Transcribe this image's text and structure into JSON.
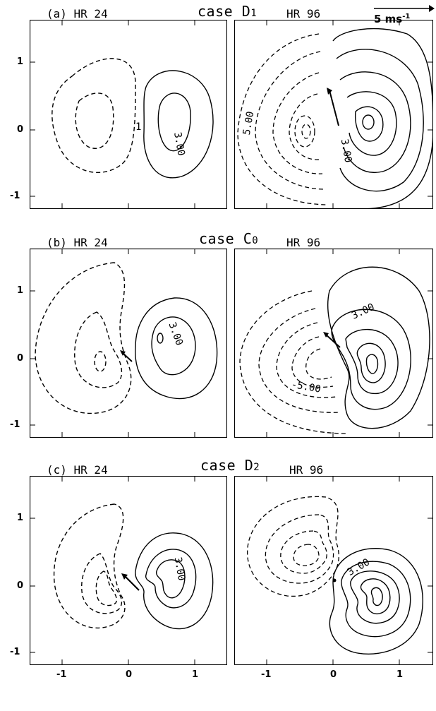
{
  "cases": [
    {
      "title": "case D",
      "title_sub": "1",
      "left_label": "(a) HR 24",
      "right_label": "HR 96",
      "left_contour_labels": [
        "3.00",
        "1"
      ],
      "right_contour_labels": [
        "5.00",
        "3.00"
      ]
    },
    {
      "title": "case C",
      "title_sub": "0",
      "left_label": "(b) HR 24",
      "right_label": "HR 96",
      "left_contour_labels": [
        "3.00"
      ],
      "right_contour_labels": [
        "3.00",
        "-5.00"
      ]
    },
    {
      "title": "case D",
      "title_sub": "2",
      "left_label": "(c) HR 24",
      "right_label": "HR 96",
      "left_contour_labels": [
        "3.00"
      ],
      "right_contour_labels": [
        "3.00"
      ]
    }
  ],
  "scale": {
    "text": "5 ms",
    "exp": "-1"
  },
  "y_ticks": [
    "1",
    "0",
    "-1"
  ],
  "x_ticks_left": [
    "-1",
    "0",
    "1"
  ],
  "x_ticks_right": [
    "-1",
    "0",
    "1"
  ]
}
